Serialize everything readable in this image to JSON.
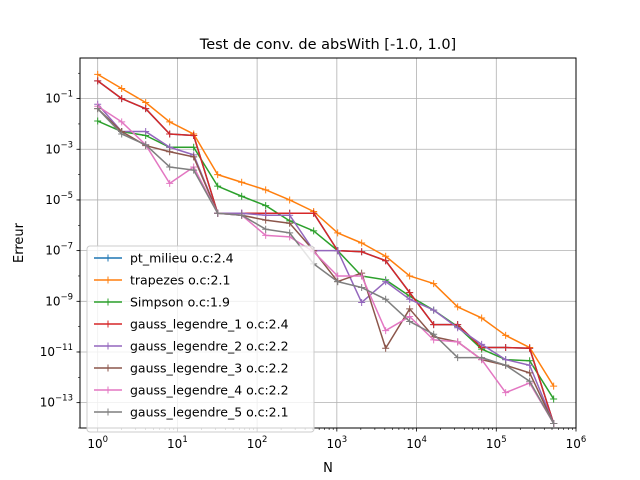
{
  "chart_data": {
    "type": "line",
    "title": "Test de conv. de absWith [-1.0, 1.0]",
    "xlabel": "N",
    "ylabel": "Erreur",
    "xscale": "log",
    "yscale": "log",
    "xlim": [
      0.6,
      1000000
    ],
    "ylim": [
      1e-14,
      4
    ],
    "grid": true,
    "legend_position": "lower-left",
    "x_ticks": [
      {
        "value": 1,
        "base": "10",
        "exp": "0"
      },
      {
        "value": 10,
        "base": "10",
        "exp": "1"
      },
      {
        "value": 100,
        "base": "10",
        "exp": "2"
      },
      {
        "value": 1000,
        "base": "10",
        "exp": "3"
      },
      {
        "value": 10000,
        "base": "10",
        "exp": "4"
      },
      {
        "value": 100000,
        "base": "10",
        "exp": "5"
      },
      {
        "value": 1000000,
        "base": "10",
        "exp": "6"
      }
    ],
    "y_ticks": [
      {
        "value": 0.1,
        "base": "10",
        "exp": "−1"
      },
      {
        "value": 0.001,
        "base": "10",
        "exp": "−3"
      },
      {
        "value": 1e-05,
        "base": "10",
        "exp": "−5"
      },
      {
        "value": 1e-07,
        "base": "10",
        "exp": "−7"
      },
      {
        "value": 1e-09,
        "base": "10",
        "exp": "−9"
      },
      {
        "value": 1e-11,
        "base": "10",
        "exp": "−11"
      },
      {
        "value": 1e-13,
        "base": "10",
        "exp": "−13"
      }
    ],
    "x": [
      1,
      2,
      4,
      8,
      16,
      32,
      64,
      128,
      256,
      512,
      1024,
      2048,
      4096,
      8192,
      16384,
      32768,
      65536,
      131072,
      262144,
      524288
    ],
    "series": [
      {
        "name": "pt_milieu o.c:2.4",
        "color": "#1f77b4",
        "values": [
          0.5,
          0.1,
          0.04,
          0.004,
          0.0035,
          3e-06,
          3e-06,
          3e-06,
          3e-06,
          3e-06,
          1e-07,
          9e-08,
          4e-08,
          2.2e-09,
          1.2e-10,
          1.2e-10,
          1.5e-11,
          1.5e-11,
          1.4e-11,
          1.5e-14
        ]
      },
      {
        "name": "trapezes o.c:2.1",
        "color": "#ff7f0e",
        "values": [
          0.9,
          0.25,
          0.07,
          0.012,
          0.004,
          0.0001,
          5e-05,
          2.5e-05,
          1e-05,
          3.5e-06,
          5e-07,
          2e-07,
          6e-08,
          1e-08,
          5e-09,
          6e-10,
          2.2e-10,
          4.5e-11,
          1.5e-11,
          4.5e-13
        ]
      },
      {
        "name": "Simpson o.c:1.9",
        "color": "#2ca02c",
        "values": [
          0.013,
          0.005,
          0.0035,
          0.0012,
          0.0012,
          3.5e-05,
          1.4e-05,
          6e-06,
          1.5e-06,
          6e-07,
          1e-07,
          1e-08,
          7e-09,
          1.6e-09,
          4.5e-10,
          1e-10,
          1.3e-11,
          5e-12,
          4.5e-12,
          1.4e-13
        ]
      },
      {
        "name": "gauss_legendre_1 o.c:2.4",
        "color": "#d62728",
        "values": [
          0.5,
          0.1,
          0.04,
          0.004,
          0.0035,
          3e-06,
          3e-06,
          3e-06,
          3e-06,
          3e-06,
          1e-07,
          9e-08,
          4e-08,
          2.2e-09,
          1.2e-10,
          1.2e-10,
          1.5e-11,
          1.5e-11,
          1.4e-11,
          1.5e-14
        ]
      },
      {
        "name": "gauss_legendre_2 o.c:2.2",
        "color": "#9467bd",
        "values": [
          0.06,
          0.005,
          0.005,
          0.0012,
          0.0006,
          3e-06,
          3e-06,
          2.5e-06,
          2.5e-06,
          1e-07,
          1e-07,
          9e-10,
          6e-09,
          1.2e-09,
          4.5e-10,
          9e-11,
          2e-11,
          5e-12,
          3e-12,
          1.5e-14
        ]
      },
      {
        "name": "gauss_legendre_3 o.c:2.2",
        "color": "#8c564b",
        "values": [
          0.04,
          0.005,
          0.0014,
          0.0008,
          0.0005,
          3e-06,
          2.5e-06,
          1.6e-06,
          1.2e-06,
          1e-07,
          6e-09,
          1.3e-08,
          1.4e-11,
          5e-10,
          4e-11,
          2.5e-11,
          5e-12,
          3e-12,
          1.5e-12,
          1.5e-14
        ]
      },
      {
        "name": "gauss_legendre_4 o.c:2.2",
        "color": "#e377c2",
        "values": [
          0.05,
          0.012,
          0.0015,
          4.5e-05,
          0.0002,
          3e-06,
          2.5e-06,
          4e-07,
          3.5e-07,
          9e-08,
          1e-08,
          1e-08,
          7e-11,
          2.5e-10,
          3e-11,
          2.5e-11,
          5e-12,
          2.5e-13,
          6e-13,
          1.5e-14
        ]
      },
      {
        "name": "gauss_legendre_5 o.c:2.1",
        "color": "#7f7f7f",
        "values": [
          0.04,
          0.004,
          0.0015,
          0.0002,
          0.00015,
          3e-06,
          2.5e-06,
          7e-07,
          5e-07,
          3e-08,
          6e-09,
          3.5e-09,
          1.2e-09,
          1.6e-10,
          5e-11,
          6e-12,
          6e-12,
          3e-12,
          7e-13,
          1.5e-14
        ]
      }
    ]
  }
}
